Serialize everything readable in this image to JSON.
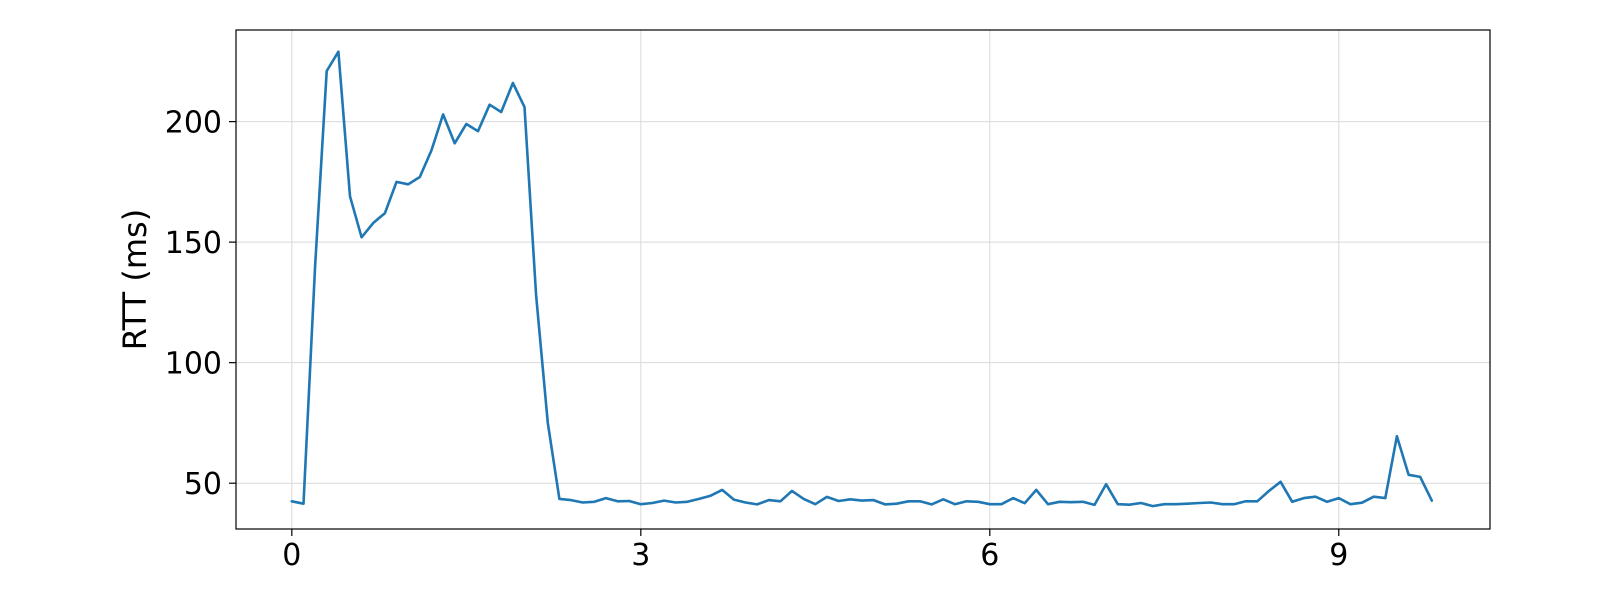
{
  "chart_data": {
    "type": "line",
    "title": "",
    "xlabel": "",
    "ylabel": "RTT (ms)",
    "xlim": [
      -0.48,
      10.3
    ],
    "ylim": [
      31,
      238
    ],
    "xticks": [
      0,
      3,
      6,
      9
    ],
    "yticks": [
      50,
      100,
      150,
      200
    ],
    "grid": true,
    "legend": "none",
    "colors": {
      "series": "#1f77b4",
      "grid": "#d9d9d9",
      "axis": "#000000"
    },
    "x": [
      0,
      0.1,
      0.2,
      0.3,
      0.4,
      0.5,
      0.6,
      0.7,
      0.8,
      0.9,
      1.0,
      1.1,
      1.2,
      1.3,
      1.4,
      1.5,
      1.6,
      1.7,
      1.8,
      1.9,
      2.0,
      2.1,
      2.2,
      2.3,
      2.4,
      2.5,
      2.6,
      2.7,
      2.8,
      2.9,
      3.0,
      3.1,
      3.2,
      3.3,
      3.4,
      3.5,
      3.6,
      3.7,
      3.8,
      3.9,
      4.0,
      4.1,
      4.2,
      4.3,
      4.4,
      4.5,
      4.6,
      4.7,
      4.8,
      4.9,
      5.0,
      5.1,
      5.2,
      5.3,
      5.4,
      5.5,
      5.6,
      5.7,
      5.8,
      5.9,
      6.0,
      6.1,
      6.2,
      6.3,
      6.4,
      6.5,
      6.6,
      6.7,
      6.8,
      6.9,
      7.0,
      7.1,
      7.2,
      7.3,
      7.4,
      7.5,
      7.6,
      7.7,
      7.8,
      7.9,
      8.0,
      8.1,
      8.2,
      8.3,
      8.4,
      8.5,
      8.6,
      8.7,
      8.8,
      8.9,
      9.0,
      9.1,
      9.2,
      9.3,
      9.4,
      9.5,
      9.6,
      9.7,
      9.8
    ],
    "series": [
      {
        "values": [
          42.5,
          41.5,
          140,
          221,
          229,
          169,
          152,
          158,
          162,
          175,
          174,
          177,
          188,
          203,
          191,
          199,
          196,
          207,
          204,
          216,
          206,
          128,
          75,
          43.5,
          43,
          42,
          42.3,
          43.8,
          42.5,
          42.6,
          41.3,
          41.8,
          42.8,
          42,
          42.3,
          43.5,
          44.8,
          47.2,
          43.2,
          42,
          41.2,
          43,
          42.5,
          46.8,
          43.5,
          41.3,
          44.3,
          42.6,
          43.3,
          42.8,
          43,
          41.2,
          41.5,
          42.5,
          42.5,
          41.2,
          43.3,
          41.3,
          42.5,
          42.3,
          41.3,
          41.3,
          43.8,
          41.7,
          47.2,
          41.3,
          42.3,
          42.1,
          42.3,
          41,
          49.6,
          41.3,
          41.1,
          41.8,
          40.5,
          41.3,
          41.3,
          41.5,
          41.8,
          42,
          41.3,
          41.3,
          42.5,
          42.5,
          46.8,
          50.6,
          42.3,
          43.8,
          44.4,
          42.3,
          43.8,
          41.3,
          41.9,
          44.4,
          43.8,
          69.5,
          53.5,
          52.6,
          42.8
        ]
      }
    ]
  }
}
